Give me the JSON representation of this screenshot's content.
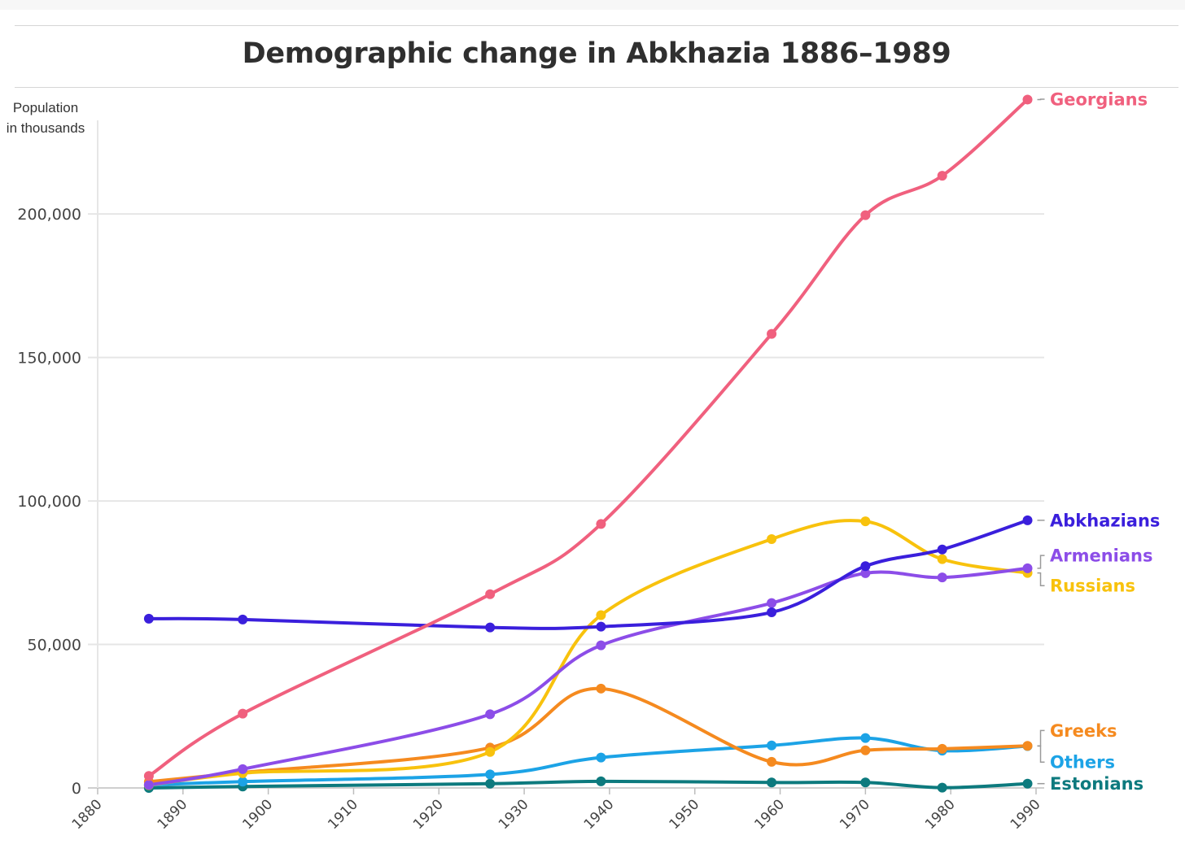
{
  "chart_data": {
    "type": "line",
    "title": "Demographic change in Abkhazia 1886–1989",
    "ylabel": [
      "Population",
      "in thousands"
    ],
    "xlabel": "",
    "xlim": [
      1880,
      1990
    ],
    "ylim": [
      0,
      240000
    ],
    "x_ticks": [
      1880,
      1890,
      1900,
      1910,
      1920,
      1930,
      1940,
      1950,
      1960,
      1970,
      1980,
      1990
    ],
    "y_ticks": [
      0,
      50000,
      100000,
      150000,
      200000
    ],
    "y_tick_labels": [
      "0",
      "50,000",
      "100,000",
      "150,000",
      "200,000"
    ],
    "x": [
      1886,
      1897,
      1926,
      1939,
      1959,
      1970,
      1979,
      1989
    ],
    "series": [
      {
        "name": "Georgians",
        "color": "#f0607e",
        "label_y": 240000,
        "values": [
          4166,
          25875,
          67494,
          91967,
          158221,
          199596,
          213322,
          239872
        ]
      },
      {
        "name": "Abkhazians",
        "color": "#3a1fdc",
        "label_y": 93267,
        "values": [
          58963,
          58697,
          55918,
          56197,
          61193,
          77276,
          83097,
          93267
        ]
      },
      {
        "name": "Armenians",
        "color": "#8c4de8",
        "label_y": 81000,
        "values": [
          1049,
          6552,
          25677,
          49705,
          64425,
          74850,
          73350,
          76541
        ]
      },
      {
        "name": "Russians",
        "color": "#f8c20d",
        "label_y": 70500,
        "values": [
          971,
          5135,
          12553,
          60201,
          86715,
          92889,
          79730,
          74914
        ]
      },
      {
        "name": "Greeks",
        "color": "#f58a1f",
        "label_y": 20000,
        "values": [
          2149,
          5393,
          14045,
          34621,
          9101,
          13114,
          13642,
          14664
        ]
      },
      {
        "name": "Others",
        "color": "#1ca3e6",
        "label_y": 9000,
        "values": [
          1000,
          2200,
          4700,
          10600,
          14800,
          17400,
          13000,
          14600
        ]
      },
      {
        "name": "Estonians",
        "color": "#0d7a7e",
        "label_y": 1500,
        "values": [
          0,
          500,
          1500,
          2300,
          1900,
          1900,
          100,
          1500
        ]
      }
    ]
  }
}
